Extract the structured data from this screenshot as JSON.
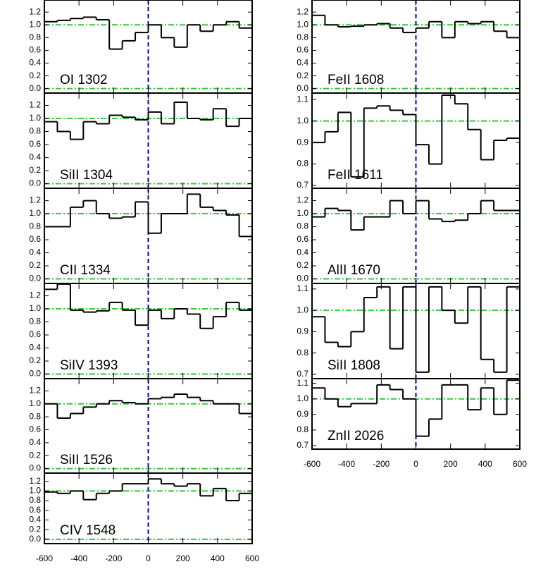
{
  "chart_data": [
    {
      "type": "line",
      "label": "OI 1302",
      "x": [
        -562.5,
        -487.5,
        -412.5,
        -337.5,
        -262.5,
        -187.5,
        -112.5,
        -37.5,
        37.5,
        112.5,
        187.5,
        262.5,
        337.5,
        412.5,
        487.5,
        562.5
      ],
      "values": [
        1.05,
        1.07,
        1.1,
        1.12,
        1.08,
        0.62,
        0.75,
        0.88,
        1.0,
        0.8,
        0.65,
        1.0,
        0.9,
        1.0,
        1.05,
        0.95
      ],
      "color": "#000000",
      "xlim": [
        -600,
        600
      ],
      "xticks": [
        -600,
        -400,
        -200,
        0,
        200,
        400,
        600
      ],
      "ylim": [
        -0.07,
        1.39
      ],
      "yticks": [
        {
          "value": 0,
          "label": "0.0"
        },
        {
          "value": 0.2,
          "label": "0.2"
        },
        {
          "value": 0.4,
          "label": "0.4"
        },
        {
          "value": 0.6,
          "label": "0.6"
        },
        {
          "value": 0.8,
          "label": "0.8"
        },
        {
          "value": 1,
          "label": "1.0"
        },
        {
          "value": 1.2,
          "label": "1.2"
        }
      ],
      "reference_y": [
        0,
        1
      ],
      "reference_x": [
        0
      ],
      "reference_y_color": "#33cc33",
      "reference_x_color": "#0000dd",
      "show_xtick_labels": false
    },
    {
      "type": "line",
      "label": "SiII 1304",
      "x": [
        -562.5,
        -487.5,
        -412.5,
        -337.5,
        -262.5,
        -187.5,
        -112.5,
        -37.5,
        37.5,
        112.5,
        187.5,
        262.5,
        337.5,
        412.5,
        487.5,
        562.5
      ],
      "values": [
        0.95,
        0.8,
        0.68,
        0.95,
        0.92,
        1.05,
        1.02,
        0.98,
        1.1,
        0.92,
        1.25,
        1.0,
        0.98,
        1.15,
        0.88,
        1.0
      ],
      "color": "#000000",
      "xlim": [
        -600,
        600
      ],
      "xticks": [
        -600,
        -400,
        -200,
        0,
        200,
        400,
        600
      ],
      "ylim": [
        -0.07,
        1.39
      ],
      "yticks": [
        {
          "value": 0,
          "label": "0.0"
        },
        {
          "value": 0.2,
          "label": "0.2"
        },
        {
          "value": 0.4,
          "label": "0.4"
        },
        {
          "value": 0.6,
          "label": "0.6"
        },
        {
          "value": 0.8,
          "label": "0.8"
        },
        {
          "value": 1,
          "label": "1.0"
        },
        {
          "value": 1.2,
          "label": "1.2"
        }
      ],
      "reference_y": [
        0,
        1
      ],
      "reference_x": [
        0
      ],
      "reference_y_color": "#33cc33",
      "reference_x_color": "#0000dd",
      "show_xtick_labels": false
    },
    {
      "type": "line",
      "label": "CII 1334",
      "x": [
        -562.5,
        -487.5,
        -412.5,
        -337.5,
        -262.5,
        -187.5,
        -112.5,
        -37.5,
        37.5,
        112.5,
        187.5,
        262.5,
        337.5,
        412.5,
        487.5,
        562.5
      ],
      "values": [
        0.8,
        0.8,
        1.1,
        1.2,
        1.0,
        0.93,
        0.95,
        1.18,
        0.7,
        1.0,
        1.0,
        1.3,
        1.1,
        1.05,
        0.98,
        0.65
      ],
      "color": "#000000",
      "xlim": [
        -600,
        600
      ],
      "xticks": [
        -600,
        -400,
        -200,
        0,
        200,
        400,
        600
      ],
      "ylim": [
        -0.07,
        1.39
      ],
      "yticks": [
        {
          "value": 0,
          "label": "0.0"
        },
        {
          "value": 0.2,
          "label": "0.2"
        },
        {
          "value": 0.4,
          "label": "0.4"
        },
        {
          "value": 0.6,
          "label": "0.6"
        },
        {
          "value": 0.8,
          "label": "0.8"
        },
        {
          "value": 1,
          "label": "1.0"
        },
        {
          "value": 1.2,
          "label": "1.2"
        }
      ],
      "reference_y": [
        0,
        1
      ],
      "reference_x": [
        0
      ],
      "reference_y_color": "#33cc33",
      "reference_x_color": "#0000dd",
      "show_xtick_labels": false
    },
    {
      "type": "line",
      "label": "SiIV 1393",
      "x": [
        -562.5,
        -487.5,
        -412.5,
        -337.5,
        -262.5,
        -187.5,
        -112.5,
        -37.5,
        37.5,
        112.5,
        187.5,
        262.5,
        337.5,
        412.5,
        487.5,
        562.5
      ],
      "values": [
        1.3,
        1.38,
        0.98,
        0.95,
        0.97,
        1.1,
        0.98,
        0.75,
        0.98,
        0.85,
        1.0,
        0.92,
        0.7,
        0.88,
        1.1,
        0.98
      ],
      "color": "#000000",
      "xlim": [
        -600,
        600
      ],
      "xticks": [
        -600,
        -400,
        -200,
        0,
        200,
        400,
        600
      ],
      "ylim": [
        -0.07,
        1.39
      ],
      "yticks": [
        {
          "value": 0,
          "label": "0.0"
        },
        {
          "value": 0.2,
          "label": "0.2"
        },
        {
          "value": 0.4,
          "label": "0.4"
        },
        {
          "value": 0.6,
          "label": "0.6"
        },
        {
          "value": 0.8,
          "label": "0.8"
        },
        {
          "value": 1,
          "label": "1.0"
        },
        {
          "value": 1.2,
          "label": "1.2"
        }
      ],
      "reference_y": [
        0,
        1
      ],
      "reference_x": [
        0
      ],
      "reference_y_color": "#33cc33",
      "reference_x_color": "#0000dd",
      "show_xtick_labels": false
    },
    {
      "type": "line",
      "label": "SiII 1526",
      "x": [
        -562.5,
        -487.5,
        -412.5,
        -337.5,
        -262.5,
        -187.5,
        -112.5,
        -37.5,
        37.5,
        112.5,
        187.5,
        262.5,
        337.5,
        412.5,
        487.5,
        562.5
      ],
      "values": [
        1.0,
        0.78,
        0.85,
        0.95,
        1.0,
        1.05,
        1.02,
        1.0,
        1.08,
        1.1,
        1.15,
        1.1,
        1.05,
        1.0,
        1.0,
        0.85
      ],
      "color": "#000000",
      "xlim": [
        -600,
        600
      ],
      "xticks": [
        -600,
        -400,
        -200,
        0,
        200,
        400,
        600
      ],
      "ylim": [
        -0.07,
        1.39
      ],
      "yticks": [
        {
          "value": 0,
          "label": "0.0"
        },
        {
          "value": 0.2,
          "label": "0.2"
        },
        {
          "value": 0.4,
          "label": "0.4"
        },
        {
          "value": 0.6,
          "label": "0.6"
        },
        {
          "value": 0.8,
          "label": "0.8"
        },
        {
          "value": 1,
          "label": "1.0"
        },
        {
          "value": 1.2,
          "label": "1.2"
        }
      ],
      "reference_y": [
        0,
        1
      ],
      "reference_x": [
        0
      ],
      "reference_y_color": "#33cc33",
      "reference_x_color": "#0000dd",
      "show_xtick_labels": false
    },
    {
      "type": "line",
      "label": "CIV 1548",
      "x": [
        -562.5,
        -487.5,
        -412.5,
        -337.5,
        -262.5,
        -187.5,
        -112.5,
        -37.5,
        37.5,
        112.5,
        187.5,
        262.5,
        337.5,
        412.5,
        487.5,
        562.5
      ],
      "values": [
        0.98,
        0.95,
        1.0,
        0.82,
        0.95,
        1.0,
        1.15,
        1.15,
        1.25,
        1.15,
        1.1,
        1.15,
        0.9,
        1.05,
        0.8,
        0.95
      ],
      "color": "#000000",
      "xlim": [
        -600,
        600
      ],
      "xticks": [
        -600,
        -400,
        -200,
        0,
        200,
        400,
        600
      ],
      "ylim": [
        -0.09,
        1.37
      ],
      "yticks": [
        {
          "value": 0,
          "label": "0.0"
        },
        {
          "value": 0.2,
          "label": "0.2"
        },
        {
          "value": 0.4,
          "label": "0.4"
        },
        {
          "value": 0.6,
          "label": "0.6"
        },
        {
          "value": 0.8,
          "label": "0.8"
        },
        {
          "value": 1,
          "label": "1.0"
        },
        {
          "value": 1.2,
          "label": "1.2"
        }
      ],
      "reference_y": [
        0,
        1
      ],
      "reference_x": [
        0
      ],
      "reference_y_color": "#33cc33",
      "reference_x_color": "#0000dd",
      "show_xtick_labels": true
    },
    {
      "type": "line",
      "label": "FeII 1608",
      "x": [
        -562.5,
        -487.5,
        -412.5,
        -337.5,
        -262.5,
        -187.5,
        -112.5,
        -37.5,
        37.5,
        112.5,
        187.5,
        262.5,
        337.5,
        412.5,
        487.5,
        562.5
      ],
      "values": [
        1.15,
        1.0,
        0.97,
        0.98,
        1.0,
        1.02,
        0.95,
        0.88,
        0.95,
        1.05,
        0.8,
        1.05,
        1.02,
        1.05,
        0.9,
        0.8
      ],
      "color": "#000000",
      "xlim": [
        -600,
        600
      ],
      "xticks": [
        -600,
        -400,
        -200,
        0,
        200,
        400,
        600
      ],
      "ylim": [
        -0.07,
        1.39
      ],
      "yticks": [
        {
          "value": 0,
          "label": "0.0"
        },
        {
          "value": 0.2,
          "label": "0.2"
        },
        {
          "value": 0.4,
          "label": "0.4"
        },
        {
          "value": 0.6,
          "label": "0.6"
        },
        {
          "value": 0.8,
          "label": "0.8"
        },
        {
          "value": 1,
          "label": "1.0"
        },
        {
          "value": 1.2,
          "label": "1.2"
        }
      ],
      "reference_y": [
        0,
        1
      ],
      "reference_x": [
        0
      ],
      "reference_y_color": "#33cc33",
      "reference_x_color": "#0000dd",
      "show_xtick_labels": false
    },
    {
      "type": "line",
      "label": "FeII 1611",
      "x": [
        -562.5,
        -487.5,
        -412.5,
        -337.5,
        -262.5,
        -187.5,
        -112.5,
        -37.5,
        37.5,
        112.5,
        187.5,
        262.5,
        337.5,
        412.5,
        487.5,
        562.5
      ],
      "values": [
        0.9,
        0.95,
        1.04,
        0.74,
        1.06,
        1.07,
        1.05,
        1.03,
        0.89,
        0.8,
        1.12,
        1.08,
        0.96,
        0.82,
        0.91,
        0.92
      ],
      "color": "#000000",
      "xlim": [
        -600,
        600
      ],
      "xticks": [
        -600,
        -400,
        -200,
        0,
        200,
        400,
        600
      ],
      "ylim": [
        0.687,
        1.13
      ],
      "yticks": [
        {
          "value": 0.7,
          "label": "0.7"
        },
        {
          "value": 0.8,
          "label": "0.8"
        },
        {
          "value": 0.9,
          "label": "0.9"
        },
        {
          "value": 1,
          "label": "1.0"
        },
        {
          "value": 1.1,
          "label": "1.1"
        }
      ],
      "reference_y": [
        1
      ],
      "reference_x": [
        0
      ],
      "reference_y_color": "#33cc33",
      "reference_x_color": "#0000dd",
      "show_xtick_labels": false
    },
    {
      "type": "line",
      "label": "AlII 1670",
      "x": [
        -562.5,
        -487.5,
        -412.5,
        -337.5,
        -262.5,
        -187.5,
        -112.5,
        -37.5,
        37.5,
        112.5,
        187.5,
        262.5,
        337.5,
        412.5,
        487.5,
        562.5
      ],
      "values": [
        0.95,
        1.08,
        1.05,
        0.75,
        0.95,
        0.95,
        1.2,
        1.0,
        1.2,
        0.92,
        0.88,
        0.9,
        1.0,
        1.2,
        1.05,
        1.05
      ],
      "color": "#000000",
      "xlim": [
        -600,
        600
      ],
      "xticks": [
        -600,
        -400,
        -200,
        0,
        200,
        400,
        600
      ],
      "ylim": [
        -0.07,
        1.39
      ],
      "yticks": [
        {
          "value": 0,
          "label": "0.0"
        },
        {
          "value": 0.2,
          "label": "0.2"
        },
        {
          "value": 0.4,
          "label": "0.4"
        },
        {
          "value": 0.6,
          "label": "0.6"
        },
        {
          "value": 0.8,
          "label": "0.8"
        },
        {
          "value": 1,
          "label": "1.0"
        },
        {
          "value": 1.2,
          "label": "1.2"
        }
      ],
      "reference_y": [
        0,
        1
      ],
      "reference_x": [
        0
      ],
      "reference_y_color": "#33cc33",
      "reference_x_color": "#0000dd",
      "show_xtick_labels": false
    },
    {
      "type": "line",
      "label": "SiII 1808",
      "x": [
        -562.5,
        -487.5,
        -412.5,
        -337.5,
        -262.5,
        -187.5,
        -112.5,
        -37.5,
        37.5,
        112.5,
        187.5,
        262.5,
        337.5,
        412.5,
        487.5,
        562.5
      ],
      "values": [
        0.97,
        0.85,
        0.83,
        0.9,
        1.06,
        1.11,
        0.82,
        1.11,
        0.71,
        1.11,
        1.0,
        0.94,
        1.11,
        0.77,
        0.71,
        1.11
      ],
      "color": "#000000",
      "xlim": [
        -600,
        600
      ],
      "xticks": [
        -600,
        -400,
        -200,
        0,
        200,
        400,
        600
      ],
      "ylim": [
        0.68,
        1.126
      ],
      "yticks": [
        {
          "value": 0.7,
          "label": "0.7"
        },
        {
          "value": 0.8,
          "label": "0.8"
        },
        {
          "value": 0.9,
          "label": "0.9"
        },
        {
          "value": 1,
          "label": "1.0"
        },
        {
          "value": 1.1,
          "label": "1.1"
        }
      ],
      "reference_y": [
        1
      ],
      "reference_x": [
        0
      ],
      "reference_y_color": "#33cc33",
      "reference_x_color": "#0000dd",
      "show_xtick_labels": false
    },
    {
      "type": "line",
      "label": "ZnII 2026",
      "x": [
        -562.5,
        -487.5,
        -412.5,
        -337.5,
        -262.5,
        -187.5,
        -112.5,
        -37.5,
        37.5,
        112.5,
        187.5,
        262.5,
        337.5,
        412.5,
        487.5,
        562.5
      ],
      "values": [
        1.07,
        1.0,
        0.95,
        0.97,
        0.97,
        1.09,
        1.06,
        1.0,
        0.76,
        0.87,
        1.09,
        1.09,
        0.93,
        1.07,
        0.9,
        1.12
      ],
      "color": "#000000",
      "xlim": [
        -600,
        600
      ],
      "xticks": [
        -600,
        -400,
        -200,
        0,
        200,
        400,
        600
      ],
      "ylim": [
        0.677,
        1.13
      ],
      "yticks": [
        {
          "value": 0.7,
          "label": "0.7"
        },
        {
          "value": 0.8,
          "label": "0.8"
        },
        {
          "value": 0.9,
          "label": "0.9"
        },
        {
          "value": 1,
          "label": "1.0"
        },
        {
          "value": 1.1,
          "label": "1.1"
        }
      ],
      "reference_y": [
        1
      ],
      "reference_x": [
        0
      ],
      "reference_y_color": "#33cc33",
      "reference_x_color": "#0000dd",
      "show_xtick_labels": true
    }
  ]
}
